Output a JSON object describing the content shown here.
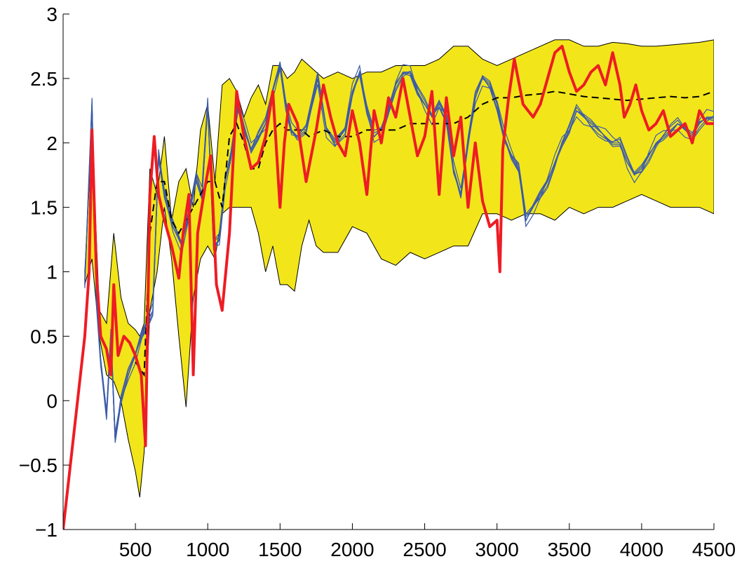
{
  "chart_data": {
    "type": "line",
    "title": "",
    "xlabel": "",
    "ylabel": "",
    "xlim": [
      0,
      4500
    ],
    "ylim": [
      -1,
      3
    ],
    "x_ticks": [
      500,
      1000,
      1500,
      2000,
      2500,
      3000,
      3500,
      4000,
      4500
    ],
    "y_ticks": [
      -1,
      -0.5,
      0,
      0.5,
      1,
      1.5,
      2,
      2.5,
      3
    ],
    "x_tick_labels": [
      "500",
      "1000",
      "1500",
      "2000",
      "2500",
      "3000",
      "3500",
      "4000",
      "4500"
    ],
    "y_tick_labels": [
      "−1",
      "−0.5",
      "0",
      "0.5",
      "1",
      "1.5",
      "2",
      "2.5",
      "3"
    ],
    "grid": false,
    "legend": "none",
    "colors": {
      "band_fill": "#f2e61a",
      "band_edge": "#000000",
      "red_series": "#ee1c24",
      "blue_series": "#3b5ba8",
      "dashed_series": "#000000"
    },
    "band": {
      "x": [
        150,
        200,
        250,
        300,
        350,
        400,
        450,
        500,
        530,
        560,
        600,
        650,
        700,
        750,
        800,
        850,
        900,
        950,
        1000,
        1050,
        1100,
        1150,
        1200,
        1250,
        1300,
        1350,
        1400,
        1450,
        1500,
        1550,
        1600,
        1650,
        1700,
        1750,
        1800,
        1900,
        2000,
        2100,
        2200,
        2300,
        2400,
        2500,
        2600,
        2700,
        2800,
        2900,
        3000,
        3100,
        3200,
        3300,
        3400,
        3500,
        3600,
        3700,
        3800,
        3900,
        4000,
        4100,
        4200,
        4300,
        4400,
        4500
      ],
      "upper": [
        1.0,
        2.1,
        0.7,
        0.6,
        1.3,
        0.8,
        0.6,
        0.55,
        0.5,
        0.6,
        1.8,
        1.6,
        2.05,
        1.4,
        1.7,
        1.8,
        1.5,
        2.1,
        2.3,
        1.7,
        2.45,
        2.5,
        2.4,
        2.2,
        2.35,
        2.45,
        2.3,
        2.6,
        2.6,
        2.5,
        2.55,
        2.65,
        2.6,
        2.55,
        2.5,
        2.55,
        2.5,
        2.55,
        2.55,
        2.6,
        2.6,
        2.6,
        2.65,
        2.75,
        2.75,
        2.65,
        2.6,
        2.65,
        2.7,
        2.75,
        2.8,
        2.8,
        2.75,
        2.75,
        2.78,
        2.77,
        2.75,
        2.75,
        2.76,
        2.77,
        2.78,
        2.8
      ],
      "lower": [
        0.9,
        1.1,
        0.5,
        0.2,
        0.15,
        0.0,
        -0.3,
        -0.55,
        -0.75,
        -0.4,
        0.7,
        1.0,
        1.5,
        1.1,
        0.5,
        -0.05,
        0.8,
        1.1,
        1.2,
        1.1,
        1.45,
        1.5,
        1.5,
        1.5,
        1.5,
        1.3,
        1.0,
        1.2,
        0.9,
        0.9,
        0.85,
        1.2,
        1.4,
        1.2,
        1.15,
        1.15,
        1.35,
        1.3,
        1.1,
        1.05,
        1.15,
        1.1,
        1.15,
        1.2,
        1.2,
        1.45,
        1.45,
        1.4,
        1.45,
        1.45,
        1.4,
        1.5,
        1.45,
        1.5,
        1.5,
        1.55,
        1.6,
        1.55,
        1.5,
        1.5,
        1.5,
        1.45
      ]
    },
    "series": [
      {
        "style": "solid-thick",
        "color": "#ee1c24",
        "x": [
          0,
          50,
          100,
          150,
          180,
          200,
          230,
          260,
          300,
          330,
          350,
          380,
          420,
          460,
          500,
          540,
          570,
          600,
          630,
          660,
          700,
          750,
          800,
          830,
          870,
          900,
          930,
          980,
          1020,
          1060,
          1100,
          1150,
          1200,
          1250,
          1300,
          1350,
          1400,
          1450,
          1500,
          1530,
          1560,
          1620,
          1680,
          1750,
          1800,
          1850,
          1900,
          1950,
          2000,
          2050,
          2100,
          2150,
          2200,
          2250,
          2300,
          2350,
          2400,
          2450,
          2500,
          2550,
          2600,
          2650,
          2700,
          2750,
          2800,
          2850,
          2900,
          2950,
          3000,
          3020,
          3040,
          3080,
          3120,
          3180,
          3250,
          3300,
          3350,
          3400,
          3450,
          3500,
          3550,
          3600,
          3650,
          3700,
          3750,
          3800,
          3850,
          3880,
          3920,
          3960,
          4000,
          4050,
          4100,
          4150,
          4200,
          4250,
          4300,
          4350,
          4400,
          4450,
          4500
        ],
        "y": [
          -1.0,
          -0.5,
          0.0,
          0.5,
          1.0,
          2.1,
          1.0,
          0.5,
          0.4,
          0.2,
          0.9,
          0.35,
          0.5,
          0.45,
          0.35,
          0.2,
          -0.35,
          1.6,
          2.05,
          1.6,
          1.4,
          1.2,
          0.95,
          1.3,
          1.6,
          0.2,
          1.3,
          1.65,
          1.9,
          0.9,
          0.7,
          1.3,
          2.4,
          2.05,
          1.8,
          1.85,
          2.05,
          2.4,
          1.5,
          2.0,
          2.3,
          2.15,
          1.7,
          2.1,
          2.45,
          2.2,
          2.0,
          1.9,
          2.25,
          2.0,
          1.6,
          2.25,
          2.0,
          2.35,
          2.2,
          2.5,
          2.2,
          1.9,
          2.05,
          2.4,
          1.6,
          2.35,
          1.9,
          2.2,
          1.5,
          2.0,
          1.55,
          1.35,
          1.4,
          1.0,
          1.95,
          2.35,
          2.65,
          2.3,
          2.2,
          2.3,
          2.5,
          2.7,
          2.75,
          2.55,
          2.4,
          2.45,
          2.55,
          2.6,
          2.45,
          2.7,
          2.45,
          2.2,
          2.3,
          2.45,
          2.25,
          2.1,
          2.15,
          2.25,
          2.05,
          2.1,
          2.15,
          2.0,
          2.25,
          2.15,
          2.15
        ]
      },
      {
        "style": "dashed",
        "color": "#000000",
        "x": [
          500,
          560,
          600,
          650,
          700,
          750,
          800,
          850,
          900,
          950,
          1000,
          1050,
          1100,
          1150,
          1200,
          1250,
          1300,
          1350,
          1400,
          1450,
          1500,
          1550,
          1600,
          1650,
          1700,
          1800,
          1900,
          2000,
          2100,
          2200,
          2300,
          2400,
          2500,
          2600,
          2700,
          2800,
          2900,
          3000,
          3100,
          3200,
          3300,
          3400,
          3500,
          3600,
          3700,
          3800,
          3900,
          4000,
          4100,
          4200,
          4300,
          4400,
          4500
        ],
        "y": [
          0.3,
          0.2,
          1.3,
          1.7,
          1.7,
          1.4,
          1.3,
          1.4,
          1.5,
          1.6,
          1.7,
          1.7,
          1.5,
          2.05,
          2.15,
          2.0,
          1.8,
          1.8,
          2.0,
          2.1,
          2.15,
          2.1,
          2.1,
          2.1,
          2.05,
          2.1,
          2.05,
          2.05,
          2.1,
          2.1,
          2.1,
          2.15,
          2.15,
          2.15,
          2.15,
          2.2,
          2.3,
          2.35,
          2.35,
          2.37,
          2.38,
          2.4,
          2.38,
          2.36,
          2.35,
          2.34,
          2.33,
          2.34,
          2.35,
          2.36,
          2.35,
          2.36,
          2.4
        ]
      },
      {
        "style": "solid-thin-bundle",
        "color": "#3b5ba8",
        "x": [
          150,
          200,
          230,
          260,
          300,
          330,
          360,
          400,
          450,
          500,
          540,
          580,
          620,
          660,
          700,
          760,
          820,
          870,
          920,
          960,
          1000,
          1040,
          1080,
          1120,
          1160,
          1210,
          1260,
          1300,
          1350,
          1400,
          1450,
          1500,
          1540,
          1580,
          1620,
          1680,
          1760,
          1820,
          1880,
          1950,
          2000,
          2050,
          2100,
          2150,
          2200,
          2250,
          2300,
          2350,
          2400,
          2450,
          2500,
          2550,
          2600,
          2650,
          2700,
          2750,
          2800,
          2850,
          2900,
          2950,
          3000,
          3050,
          3100,
          3150,
          3200,
          3250,
          3300,
          3350,
          3400,
          3450,
          3500,
          3550,
          3600,
          3650,
          3700,
          3750,
          3800,
          3850,
          3900,
          3950,
          4000,
          4050,
          4100,
          4150,
          4200,
          4250,
          4300,
          4350,
          4400,
          4450,
          4500
        ],
        "y": [
          0.9,
          2.3,
          0.8,
          0.3,
          -0.1,
          0.5,
          -0.3,
          0.0,
          0.2,
          0.35,
          0.5,
          0.6,
          0.7,
          1.9,
          1.6,
          1.35,
          1.2,
          1.45,
          1.75,
          1.6,
          2.3,
          1.2,
          1.25,
          1.7,
          1.9,
          2.3,
          2.1,
          1.95,
          2.05,
          2.15,
          2.4,
          2.6,
          2.3,
          2.1,
          2.05,
          2.1,
          2.5,
          2.1,
          2.0,
          2.1,
          2.4,
          2.55,
          2.25,
          2.05,
          2.1,
          2.25,
          2.45,
          2.55,
          2.55,
          2.4,
          2.3,
          2.2,
          2.3,
          2.2,
          1.8,
          1.6,
          2.0,
          2.35,
          2.5,
          2.45,
          2.3,
          2.05,
          1.9,
          1.8,
          1.4,
          1.5,
          1.6,
          1.7,
          1.85,
          2.0,
          2.1,
          2.25,
          2.2,
          2.15,
          2.1,
          2.05,
          2.0,
          2.0,
          1.85,
          1.75,
          1.8,
          1.9,
          2.0,
          2.05,
          2.1,
          2.15,
          2.1,
          2.05,
          2.15,
          2.2,
          2.2
        ]
      }
    ]
  }
}
